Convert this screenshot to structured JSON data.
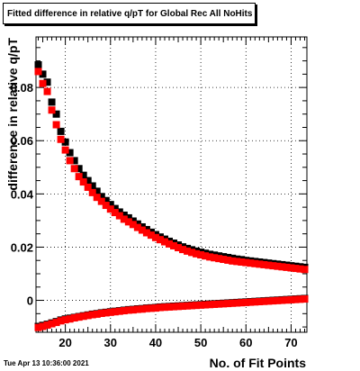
{
  "title": "Fitted difference in relative q/pT for Global Rec All NoHits",
  "datestamp": "Tue Apr 13 10:36:00 2021",
  "colors": {
    "series_black": "#000000",
    "series_red": "#ff0000",
    "grid": "#000000"
  },
  "chart_data": {
    "type": "scatter",
    "xlabel": "No. of Fit Points",
    "ylabel": "difference in relative q/pT",
    "xlim": [
      13.5,
      73.5
    ],
    "ylim": [
      -0.012,
      0.099
    ],
    "x_ticks": [
      20,
      30,
      40,
      50,
      60,
      70
    ],
    "y_ticks": [
      0,
      0.02,
      0.04,
      0.06,
      0.08
    ],
    "y_tick_labels": [
      "0",
      "0.02",
      "0.04",
      "0.06",
      "0.08"
    ],
    "grid": true,
    "series": [
      {
        "color": "#000000",
        "x": [
          14,
          15,
          16,
          17,
          18,
          19,
          20,
          21,
          22,
          23,
          24,
          25,
          26,
          27,
          28,
          29,
          30,
          31,
          32,
          33,
          34,
          35,
          36,
          37,
          38,
          39,
          40,
          41,
          42,
          43,
          44,
          45,
          46,
          47,
          48,
          49,
          50,
          51,
          52,
          53,
          54,
          55,
          56,
          57,
          58,
          59,
          60,
          61,
          62,
          63,
          64,
          65,
          66,
          67,
          68,
          69,
          70,
          71,
          72,
          73
        ],
        "y": [
          0.0885,
          0.085,
          0.082,
          0.0745,
          0.07,
          0.0635,
          0.0595,
          0.0555,
          0.0525,
          0.0495,
          0.047,
          0.045,
          0.043,
          0.041,
          0.039,
          0.0375,
          0.036,
          0.0345,
          0.0332,
          0.032,
          0.031,
          0.0298,
          0.0287,
          0.0276,
          0.0266,
          0.0256,
          0.0247,
          0.0238,
          0.023,
          0.0222,
          0.0215,
          0.0208,
          0.0201,
          0.0195,
          0.019,
          0.0185,
          0.0181,
          0.0177,
          0.0173,
          0.017,
          0.0167,
          0.0164,
          0.0161,
          0.0158,
          0.0155,
          0.0153,
          0.015,
          0.0148,
          0.0146,
          0.0144,
          0.0142,
          0.014,
          0.0138,
          0.0136,
          0.0134,
          0.0132,
          0.013,
          0.0128,
          0.0126,
          0.0124
        ]
      },
      {
        "color": "#ff0000",
        "x": [
          14,
          15,
          16,
          17,
          18,
          19,
          20,
          21,
          22,
          23,
          24,
          25,
          26,
          27,
          28,
          29,
          30,
          31,
          32,
          33,
          34,
          35,
          36,
          37,
          38,
          39,
          40,
          41,
          42,
          43,
          44,
          45,
          46,
          47,
          48,
          49,
          50,
          51,
          52,
          53,
          54,
          55,
          56,
          57,
          58,
          59,
          60,
          61,
          62,
          63,
          64,
          65,
          66,
          67,
          68,
          69,
          70,
          71,
          72,
          73
        ],
        "y": [
          0.086,
          0.0815,
          0.0785,
          0.0715,
          0.066,
          0.0605,
          0.0565,
          0.0525,
          0.0495,
          0.0465,
          0.0445,
          0.0425,
          0.0405,
          0.0387,
          0.0372,
          0.0357,
          0.0343,
          0.033,
          0.0318,
          0.0305,
          0.0295,
          0.0285,
          0.0274,
          0.0264,
          0.0254,
          0.0245,
          0.0236,
          0.0228,
          0.022,
          0.0212,
          0.0205,
          0.0198,
          0.0191,
          0.0185,
          0.018,
          0.0175,
          0.0171,
          0.0167,
          0.0163,
          0.016,
          0.0157,
          0.0154,
          0.0151,
          0.0148,
          0.0146,
          0.0144,
          0.0142,
          0.014,
          0.0138,
          0.0136,
          0.0134,
          0.0132,
          0.013,
          0.0128,
          0.0126,
          0.0124,
          0.0122,
          0.012,
          0.0118,
          0.0116
        ]
      },
      {
        "color": "#000000",
        "x": [
          14,
          15,
          16,
          17,
          18,
          19,
          20,
          21,
          22,
          23,
          24,
          25,
          26,
          27,
          28,
          29,
          30,
          31,
          32,
          33,
          34,
          35,
          36,
          37,
          38,
          39,
          40,
          41,
          42,
          43,
          44,
          45,
          46,
          47,
          48,
          49,
          50,
          51,
          52,
          53,
          54,
          55,
          56,
          57,
          58,
          59,
          60,
          61,
          62,
          63,
          64,
          65,
          66,
          67,
          68,
          69,
          70,
          71,
          72,
          73
        ],
        "y": [
          -0.0098,
          -0.0094,
          -0.009,
          -0.0085,
          -0.008,
          -0.0074,
          -0.007,
          -0.0067,
          -0.0064,
          -0.0061,
          -0.0058,
          -0.0055,
          -0.0052,
          -0.005,
          -0.0047,
          -0.0045,
          -0.0043,
          -0.0041,
          -0.0039,
          -0.0037,
          -0.0035,
          -0.0034,
          -0.0032,
          -0.0031,
          -0.0029,
          -0.0028,
          -0.0027,
          -0.0025,
          -0.0024,
          -0.0023,
          -0.0022,
          -0.0021,
          -0.002,
          -0.0019,
          -0.0018,
          -0.0017,
          -0.0016,
          -0.0015,
          -0.0014,
          -0.0013,
          -0.0012,
          -0.0011,
          -0.001,
          -0.0009,
          -0.0008,
          -0.0007,
          -0.0006,
          -0.0005,
          -0.0004,
          -0.0003,
          -0.0002,
          -0.0001,
          0,
          0.0001,
          0.0002,
          0.0003,
          0.0004,
          0.0005,
          0.0006,
          0.0007
        ]
      },
      {
        "color": "#ff0000",
        "x": [
          14,
          15,
          16,
          17,
          18,
          19,
          20,
          21,
          22,
          23,
          24,
          25,
          26,
          27,
          28,
          29,
          30,
          31,
          32,
          33,
          34,
          35,
          36,
          37,
          38,
          39,
          40,
          41,
          42,
          43,
          44,
          45,
          46,
          47,
          48,
          49,
          50,
          51,
          52,
          53,
          54,
          55,
          56,
          57,
          58,
          59,
          60,
          61,
          62,
          63,
          64,
          65,
          66,
          67,
          68,
          69,
          70,
          71,
          72,
          73
        ],
        "y": [
          -0.0102,
          -0.0098,
          -0.0093,
          -0.0088,
          -0.0083,
          -0.0077,
          -0.0073,
          -0.007,
          -0.0066,
          -0.0063,
          -0.006,
          -0.0057,
          -0.0054,
          -0.0052,
          -0.0049,
          -0.0047,
          -0.0045,
          -0.0043,
          -0.0041,
          -0.0039,
          -0.0037,
          -0.0036,
          -0.0034,
          -0.0033,
          -0.0031,
          -0.003,
          -0.0029,
          -0.0027,
          -0.0026,
          -0.0025,
          -0.0024,
          -0.0023,
          -0.0022,
          -0.0021,
          -0.002,
          -0.0019,
          -0.0018,
          -0.0017,
          -0.0016,
          -0.0015,
          -0.0014,
          -0.0013,
          -0.0012,
          -0.0011,
          -0.001,
          -0.0009,
          -0.0008,
          -0.0007,
          -0.0006,
          -0.0005,
          -0.0004,
          -0.0003,
          -0.0002,
          -0.0001,
          0,
          0.0001,
          0.0002,
          0.0003,
          0.0004,
          0.0005
        ]
      }
    ]
  }
}
